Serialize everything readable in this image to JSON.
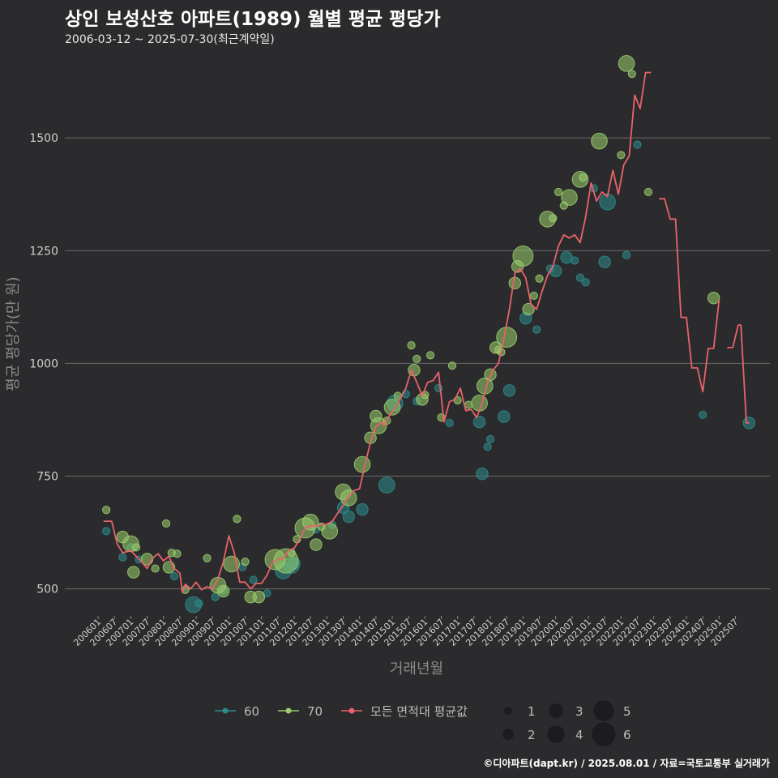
{
  "header": {
    "title": "상인 보성산호 아파트(1989) 월별 평균 평당가",
    "subtitle": "2006-03-12 ~ 2025-07-30(최근계약일)"
  },
  "footer": {
    "credit": "©디아파트(dapt.kr) / 2025.08.01 / 자료=국토교통부 실거래가"
  },
  "colors": {
    "background": "#2b2b2d",
    "grid": "#6b6b6b",
    "s60": "#2e8b8b",
    "s70": "#9acd6b",
    "avg": "#e8636a",
    "text": "#cfcfcf"
  },
  "chart_data": {
    "type": "line",
    "title": "상인 보성산호 아파트(1989) 월별 평균 평당가",
    "xlabel": "거래년월",
    "ylabel": "평균 평당가(만 원)",
    "ylim": [
      440,
      1680
    ],
    "yticks": [
      500,
      750,
      1000,
      1250,
      1500
    ],
    "xlim": [
      "2006-01",
      "2025-12"
    ],
    "xticks": [
      "200601",
      "200607",
      "200701",
      "200707",
      "200801",
      "200807",
      "200901",
      "200907",
      "201001",
      "201007",
      "201101",
      "201107",
      "201201",
      "201207",
      "201301",
      "201307",
      "201401",
      "201407",
      "201501",
      "201507",
      "201601",
      "201607",
      "201701",
      "201707",
      "201801",
      "201807",
      "201901",
      "201907",
      "202001",
      "202007",
      "202101",
      "202107",
      "202201",
      "202207",
      "202301",
      "202307",
      "202401",
      "202407",
      "202501",
      "202507"
    ],
    "legend": {
      "series": [
        {
          "name": "60",
          "color": "#2e8b8b"
        },
        {
          "name": "70",
          "color": "#9acd6b"
        },
        {
          "name": "모든 면적대 평균값",
          "color": "#e8636a"
        }
      ],
      "sizes": [
        "1",
        "2",
        "3",
        "4",
        "5",
        "6"
      ]
    },
    "average_line": [
      {
        "segment": [
          [
            "2006-03",
            650
          ],
          [
            "2006-06",
            650
          ],
          [
            "2006-08",
            600
          ],
          [
            "2006-10",
            580
          ],
          [
            "2007-01",
            585
          ],
          [
            "2007-03",
            572
          ],
          [
            "2007-05",
            560
          ],
          [
            "2007-07",
            545
          ],
          [
            "2007-09",
            568
          ],
          [
            "2007-11",
            578
          ],
          [
            "2008-01",
            562
          ],
          [
            "2008-03",
            572
          ],
          [
            "2008-05",
            545
          ],
          [
            "2008-07",
            535
          ],
          [
            "2008-08",
            492
          ],
          [
            "2008-09",
            510
          ],
          [
            "2008-11",
            500
          ],
          [
            "2009-01",
            515
          ],
          [
            "2009-03",
            498
          ],
          [
            "2009-05",
            505
          ],
          [
            "2009-07",
            500
          ],
          [
            "2009-09",
            522
          ],
          [
            "2009-11",
            560
          ],
          [
            "2010-01",
            618
          ],
          [
            "2010-03",
            580
          ],
          [
            "2010-05",
            515
          ],
          [
            "2010-07",
            515
          ],
          [
            "2010-09",
            500
          ],
          [
            "2010-11",
            512
          ],
          [
            "2011-01",
            512
          ],
          [
            "2011-03",
            530
          ],
          [
            "2011-05",
            558
          ],
          [
            "2011-07",
            565
          ],
          [
            "2011-09",
            568
          ],
          [
            "2011-11",
            585
          ],
          [
            "2012-01",
            590
          ],
          [
            "2012-03",
            610
          ],
          [
            "2012-05",
            635
          ],
          [
            "2012-07",
            640
          ],
          [
            "2012-09",
            638
          ],
          [
            "2012-11",
            643
          ],
          [
            "2013-01",
            643
          ],
          [
            "2013-03",
            650
          ],
          [
            "2013-05",
            668
          ],
          [
            "2013-07",
            685
          ],
          [
            "2013-09",
            705
          ],
          [
            "2013-11",
            718
          ],
          [
            "2014-01",
            722
          ],
          [
            "2014-03",
            775
          ],
          [
            "2014-05",
            825
          ],
          [
            "2014-07",
            860
          ],
          [
            "2014-09",
            870
          ],
          [
            "2014-10",
            862
          ],
          [
            "2014-12",
            885
          ],
          [
            "2015-02",
            900
          ],
          [
            "2015-04",
            922
          ],
          [
            "2015-06",
            945
          ],
          [
            "2015-08",
            985
          ],
          [
            "2015-10",
            958
          ],
          [
            "2015-12",
            928
          ],
          [
            "2016-02",
            958
          ],
          [
            "2016-04",
            962
          ],
          [
            "2016-06",
            980
          ],
          [
            "2016-08",
            870
          ],
          [
            "2016-10",
            915
          ],
          [
            "2016-12",
            920
          ],
          [
            "2017-02",
            945
          ],
          [
            "2017-04",
            895
          ],
          [
            "2017-06",
            898
          ],
          [
            "2017-08",
            880
          ],
          [
            "2017-10",
            912
          ],
          [
            "2017-12",
            958
          ],
          [
            "2018-02",
            985
          ],
          [
            "2018-04",
            1000
          ],
          [
            "2018-06",
            1055
          ],
          [
            "2018-08",
            1120
          ],
          [
            "2018-10",
            1200
          ],
          [
            "2018-12",
            1210
          ],
          [
            "2019-02",
            1190
          ],
          [
            "2019-04",
            1130
          ],
          [
            "2019-06",
            1120
          ],
          [
            "2019-08",
            1160
          ],
          [
            "2019-10",
            1195
          ],
          [
            "2019-12",
            1215
          ],
          [
            "2020-02",
            1260
          ],
          [
            "2020-04",
            1285
          ],
          [
            "2020-06",
            1278
          ],
          [
            "2020-08",
            1285
          ],
          [
            "2020-10",
            1268
          ],
          [
            "2020-12",
            1325
          ],
          [
            "2021-02",
            1400
          ],
          [
            "2021-04",
            1360
          ],
          [
            "2021-06",
            1380
          ],
          [
            "2021-08",
            1370
          ],
          [
            "2021-10",
            1428
          ],
          [
            "2021-12",
            1375
          ],
          [
            "2022-02",
            1440
          ],
          [
            "2022-04",
            1460
          ],
          [
            "2022-06",
            1595
          ],
          [
            "2022-08",
            1565
          ],
          [
            "2022-10",
            1645
          ],
          [
            "2022-12",
            1645
          ]
        ]
      },
      {
        "segment": [
          [
            "2023-03",
            1365
          ],
          [
            "2023-05",
            1365
          ],
          [
            "2023-07",
            1320
          ],
          [
            "2023-09",
            1320
          ],
          [
            "2023-11",
            1102
          ],
          [
            "2024-01",
            1102
          ],
          [
            "2024-03",
            990
          ],
          [
            "2024-05",
            990
          ],
          [
            "2024-07",
            937
          ],
          [
            "2024-09",
            1033
          ],
          [
            "2024-11",
            1033
          ],
          [
            "2025-01",
            1140
          ]
        ]
      },
      {
        "segment": [
          [
            "2025-04",
            1035
          ],
          [
            "2025-06",
            1035
          ],
          [
            "2025-08",
            1085
          ],
          [
            "2025-09",
            1085
          ],
          [
            "2025-11",
            868
          ],
          [
            "2025-12",
            868
          ]
        ]
      }
    ],
    "points_60": [
      [
        "2006-04",
        628,
        1
      ],
      [
        "2006-10",
        570,
        1
      ],
      [
        "2007-01",
        592,
        1
      ],
      [
        "2007-04",
        565,
        1
      ],
      [
        "2008-05",
        528,
        1
      ],
      [
        "2008-12",
        465,
        3
      ],
      [
        "2009-02",
        468,
        1
      ],
      [
        "2009-08",
        482,
        1
      ],
      [
        "2009-11",
        496,
        1
      ],
      [
        "2010-06",
        548,
        1
      ],
      [
        "2010-10",
        520,
        1
      ],
      [
        "2011-03",
        490,
        1
      ],
      [
        "2011-09",
        540,
        3
      ],
      [
        "2011-12",
        552,
        3
      ],
      [
        "2012-01",
        557,
        2
      ],
      [
        "2012-09",
        632,
        1
      ],
      [
        "2013-03",
        642,
        1
      ],
      [
        "2013-07",
        680,
        2
      ],
      [
        "2013-09",
        660,
        2
      ],
      [
        "2014-02",
        676,
        2
      ],
      [
        "2014-11",
        730,
        3
      ],
      [
        "2015-02",
        912,
        3
      ],
      [
        "2015-06",
        932,
        1
      ],
      [
        "2015-10",
        916,
        1
      ],
      [
        "2016-06",
        945,
        1
      ],
      [
        "2016-10",
        868,
        1
      ],
      [
        "2017-09",
        870,
        2
      ],
      [
        "2017-10",
        755,
        2
      ],
      [
        "2017-12",
        815,
        1
      ],
      [
        "2018-01",
        832,
        1
      ],
      [
        "2018-06",
        882,
        2
      ],
      [
        "2018-08",
        940,
        2
      ],
      [
        "2019-02",
        1100,
        2
      ],
      [
        "2019-06",
        1075,
        1
      ],
      [
        "2019-11",
        1210,
        1
      ],
      [
        "2020-01",
        1205,
        2
      ],
      [
        "2020-05",
        1235,
        2
      ],
      [
        "2020-08",
        1228,
        1
      ],
      [
        "2020-10",
        1190,
        1
      ],
      [
        "2020-12",
        1180,
        1
      ],
      [
        "2021-03",
        1388,
        1
      ],
      [
        "2021-08",
        1358,
        3
      ],
      [
        "2021-07",
        1225,
        2
      ],
      [
        "2022-03",
        1240,
        1
      ],
      [
        "2022-07",
        1485,
        1
      ],
      [
        "2024-07",
        886,
        1
      ],
      [
        "2025-12",
        868,
        2
      ]
    ],
    "points_70": [
      [
        "2006-04",
        675,
        1
      ],
      [
        "2006-10",
        615,
        2
      ],
      [
        "2007-01",
        600,
        3
      ],
      [
        "2007-02",
        537,
        2
      ],
      [
        "2007-03",
        592,
        1
      ],
      [
        "2007-07",
        566,
        2
      ],
      [
        "2007-10",
        545,
        1
      ],
      [
        "2008-03",
        548,
        2
      ],
      [
        "2008-02",
        645,
        1
      ],
      [
        "2008-04",
        580,
        1
      ],
      [
        "2008-06",
        578,
        1
      ],
      [
        "2008-09",
        498,
        1
      ],
      [
        "2009-05",
        568,
        1
      ],
      [
        "2009-09",
        508,
        3
      ],
      [
        "2009-11",
        495,
        2
      ],
      [
        "2010-02",
        555,
        3
      ],
      [
        "2010-04",
        655,
        1
      ],
      [
        "2010-07",
        560,
        1
      ],
      [
        "2010-09",
        482,
        2
      ],
      [
        "2010-12",
        482,
        2
      ],
      [
        "2011-06",
        565,
        4
      ],
      [
        "2011-10",
        562,
        5
      ],
      [
        "2011-12",
        580,
        1
      ],
      [
        "2012-02",
        610,
        1
      ],
      [
        "2012-05",
        635,
        4
      ],
      [
        "2012-07",
        648,
        3
      ],
      [
        "2012-09",
        598,
        2
      ],
      [
        "2012-11",
        638,
        1
      ],
      [
        "2013-02",
        628,
        3
      ],
      [
        "2013-07",
        715,
        3
      ],
      [
        "2013-09",
        702,
        3
      ],
      [
        "2014-02",
        776,
        3
      ],
      [
        "2014-05",
        835,
        2
      ],
      [
        "2014-07",
        883,
        2
      ],
      [
        "2014-08",
        862,
        3
      ],
      [
        "2014-11",
        873,
        1
      ],
      [
        "2015-01",
        903,
        3
      ],
      [
        "2015-03",
        928,
        1
      ],
      [
        "2015-08",
        1040,
        1
      ],
      [
        "2015-09",
        985,
        2
      ],
      [
        "2015-10",
        1010,
        1
      ],
      [
        "2015-12",
        920,
        2
      ],
      [
        "2016-01",
        930,
        1
      ],
      [
        "2016-03",
        1018,
        1
      ],
      [
        "2016-07",
        880,
        1
      ],
      [
        "2016-11",
        995,
        1
      ],
      [
        "2017-01",
        918,
        1
      ],
      [
        "2017-05",
        908,
        1
      ],
      [
        "2017-09",
        912,
        3
      ],
      [
        "2017-11",
        950,
        3
      ],
      [
        "2018-01",
        975,
        2
      ],
      [
        "2018-03",
        1035,
        2
      ],
      [
        "2018-04",
        1030,
        1
      ],
      [
        "2018-05",
        1025,
        1
      ],
      [
        "2018-07",
        1058,
        4
      ],
      [
        "2018-10",
        1178,
        2
      ],
      [
        "2018-11",
        1215,
        2
      ],
      [
        "2019-01",
        1238,
        4
      ],
      [
        "2019-03",
        1120,
        2
      ],
      [
        "2019-05",
        1150,
        1
      ],
      [
        "2019-07",
        1188,
        1
      ],
      [
        "2019-10",
        1320,
        3
      ],
      [
        "2019-12",
        1322,
        1
      ],
      [
        "2020-02",
        1380,
        1
      ],
      [
        "2020-04",
        1350,
        1
      ],
      [
        "2020-06",
        1368,
        3
      ],
      [
        "2020-10",
        1408,
        3
      ],
      [
        "2020-11",
        1412,
        1
      ],
      [
        "2021-05",
        1493,
        3
      ],
      [
        "2022-01",
        1462,
        1
      ],
      [
        "2022-03",
        1665,
        3
      ],
      [
        "2022-05",
        1642,
        1
      ],
      [
        "2024-11",
        1145,
        2
      ],
      [
        "2022-11",
        1380,
        1
      ]
    ]
  }
}
